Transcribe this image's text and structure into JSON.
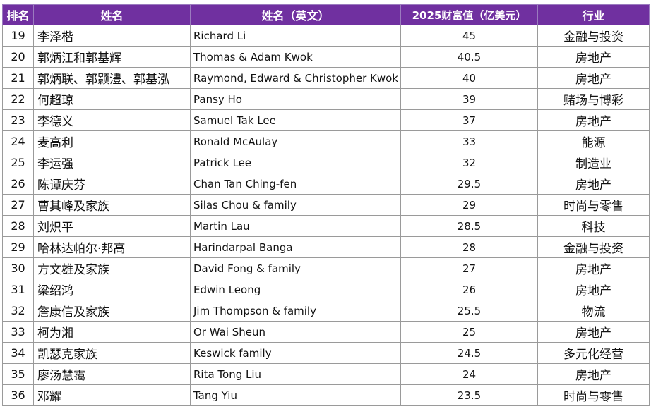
{
  "header": {
    "rank": "排名",
    "name_cn": "姓名",
    "name_en": "姓名（英文）",
    "wealth": "2025财富值（亿美元）",
    "industry": "行业"
  },
  "rows": [
    {
      "rank": "19",
      "name_cn": "李泽楷",
      "name_en": "Richard Li",
      "wealth": "45",
      "industry": "金融与投资"
    },
    {
      "rank": "20",
      "name_cn": "郭炳江和郭基辉",
      "name_en": "Thomas & Adam Kwok",
      "wealth": "40.5",
      "industry": "房地产"
    },
    {
      "rank": "21",
      "name_cn": "郭炳联、郭颢澧、郭基泓",
      "name_en": "Raymond, Edward & Christopher Kwok",
      "wealth": "40",
      "industry": "房地产"
    },
    {
      "rank": "22",
      "name_cn": "何超琼",
      "name_en": "Pansy Ho",
      "wealth": "39",
      "industry": "赌场与博彩"
    },
    {
      "rank": "23",
      "name_cn": "李德义",
      "name_en": "Samuel Tak Lee",
      "wealth": "37",
      "industry": "房地产"
    },
    {
      "rank": "24",
      "name_cn": "麦高利",
      "name_en": "Ronald McAulay",
      "wealth": "33",
      "industry": "能源"
    },
    {
      "rank": "25",
      "name_cn": "李运强",
      "name_en": "Patrick Lee",
      "wealth": "32",
      "industry": "制造业"
    },
    {
      "rank": "26",
      "name_cn": "陈谭庆芬",
      "name_en": "Chan Tan Ching-fen",
      "wealth": "29.5",
      "industry": "房地产"
    },
    {
      "rank": "27",
      "name_cn": "曹其峰及家族",
      "name_en": "Silas Chou & family",
      "wealth": "29",
      "industry": "时尚与零售"
    },
    {
      "rank": "28",
      "name_cn": "刘炽平",
      "name_en": "Martin Lau",
      "wealth": "28.5",
      "industry": "科技"
    },
    {
      "rank": "29",
      "name_cn": "哈林达帕尔·邦高",
      "name_en": "Harindarpal Banga",
      "wealth": "28",
      "industry": "金融与投资"
    },
    {
      "rank": "30",
      "name_cn": "方文雄及家族",
      "name_en": "David Fong & family",
      "wealth": "27",
      "industry": "房地产"
    },
    {
      "rank": "31",
      "name_cn": "梁绍鸿",
      "name_en": "Edwin Leong",
      "wealth": "26",
      "industry": "房地产"
    },
    {
      "rank": "32",
      "name_cn": "詹康信及家族",
      "name_en": "Jim Thompson & family",
      "wealth": "25.5",
      "industry": "物流"
    },
    {
      "rank": "33",
      "name_cn": "柯为湘",
      "name_en": "Or Wai Sheun",
      "wealth": "25",
      "industry": "房地产"
    },
    {
      "rank": "34",
      "name_cn": "凯瑟克家族",
      "name_en": "Keswick family",
      "wealth": "24.5",
      "industry": "多元化经营"
    },
    {
      "rank": "35",
      "name_cn": "廖汤慧霭",
      "name_en": "Rita Tong Liu",
      "wealth": "24",
      "industry": "房地产"
    },
    {
      "rank": "36",
      "name_cn": "邓耀",
      "name_en": "Tang Yiu",
      "wealth": "23.5",
      "industry": "时尚与零售"
    }
  ]
}
